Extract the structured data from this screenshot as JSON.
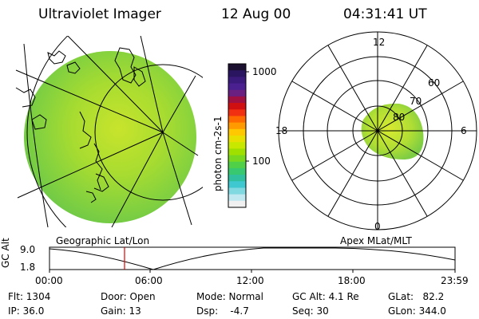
{
  "header": {
    "title": "Ultraviolet Imager",
    "date": "12 Aug 00",
    "time": "04:31:41  UT"
  },
  "colorbar": {
    "label": "photon cm-2s-1",
    "ticks": [
      "1000",
      "100"
    ],
    "colors": [
      "#1b1030",
      "#2a1560",
      "#3a1a7a",
      "#4a2090",
      "#6a2080",
      "#a01040",
      "#d01010",
      "#f03010",
      "#ff6a00",
      "#ff9a00",
      "#ffc800",
      "#e8e000",
      "#c8e800",
      "#a0e000",
      "#78d820",
      "#50d048",
      "#38c870",
      "#30c0a0",
      "#40c8d0",
      "#80d8e0",
      "#c0e8f0",
      "#f0f0f0"
    ]
  },
  "geo_panel": {
    "label": "Geographic Lat/Lon"
  },
  "polar_panel": {
    "label": "Apex  MLat/MLT",
    "mlt_labels": {
      "top": "12",
      "left": "18",
      "right": "6",
      "bottom": "0"
    },
    "lat_labels": [
      "60",
      "70",
      "80"
    ]
  },
  "altitude_plot": {
    "ylabel": "GC Alt",
    "ymax": "9.0",
    "ymin": "1.8",
    "xticks": [
      "00:00",
      "06:00",
      "12:00",
      "18:00",
      "23:59"
    ]
  },
  "info": {
    "flt": "Flt: 1304",
    "ip": "IP: 36.0",
    "door": "Door: Open",
    "gain": "Gain: 13",
    "mode": "Mode: Normal",
    "dsp": "Dsp:    -4.7",
    "gcalt": "GC Alt: 4.1 Re",
    "seq": "Seq: 30",
    "glat": "GLat:   82.2",
    "glon": "GLon: 344.0"
  }
}
